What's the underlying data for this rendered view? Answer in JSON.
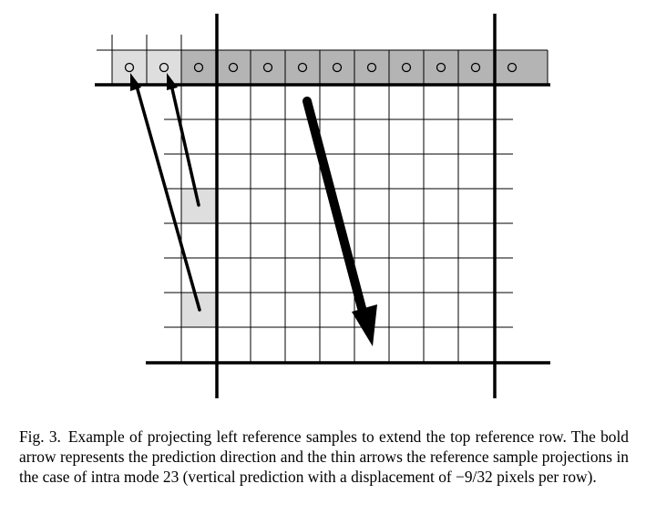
{
  "figure": {
    "caption_label": "Fig. 3.",
    "caption_text": "Example of projecting left reference samples to extend the top reference row. The bold arrow represents the prediction direction and the thin arrows the reference sample projections in the case of intra mode 23 (vertical prediction with a displacement of −9/32 pixels per row)."
  },
  "colors": {
    "grid_line": "#000000",
    "top_row_shade": "#b4b4b4",
    "extension_shade": "#dedede",
    "arrow": "#000000"
  }
}
